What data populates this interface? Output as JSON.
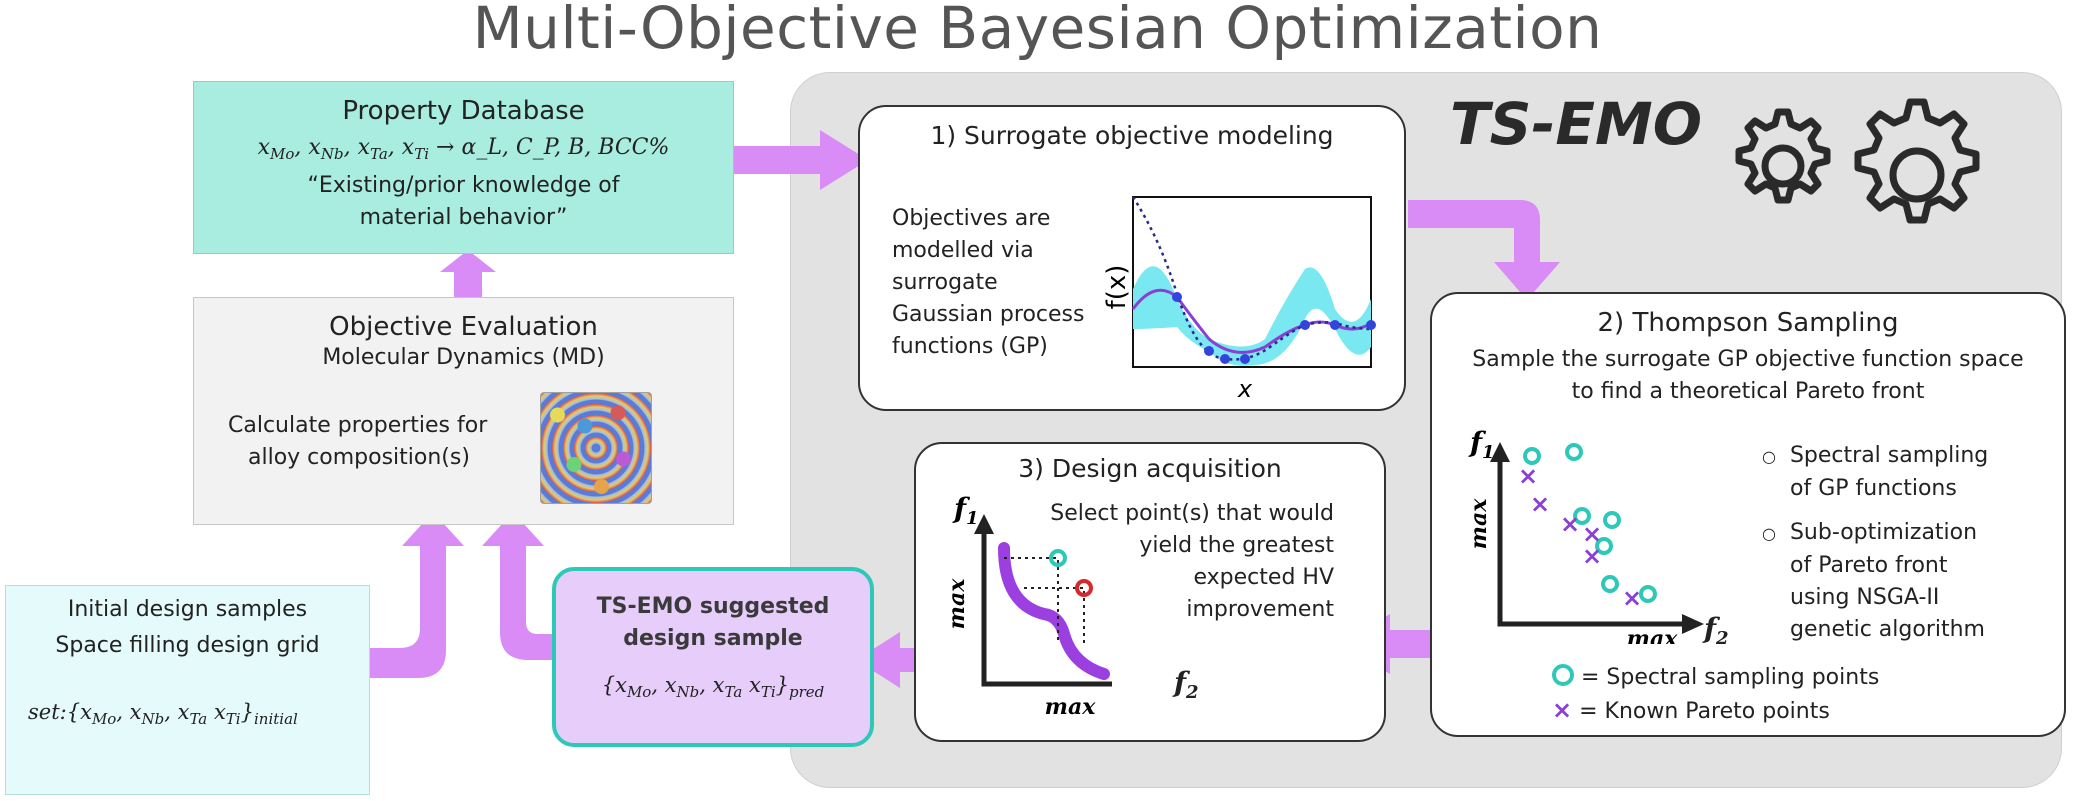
{
  "title": "Multi-Objective Bayesian Optimization",
  "tsemo_label": "TS-EMO",
  "property_database": {
    "title": "Property Database",
    "vars": [
      "Mo",
      "Nb",
      "Ta",
      "Ti"
    ],
    "outputs": "α_L, C_P, B, BCC%",
    "quote_line1": "“Existing/prior knowledge of",
    "quote_line2": "material behavior”"
  },
  "objective_evaluation": {
    "title": "Objective Evaluation",
    "subtitle": "Molecular Dynamics (MD)",
    "text_line1": "Calculate properties for",
    "text_line2": "alloy composition(s)"
  },
  "initial_design": {
    "title": "Initial design samples",
    "subtitle": "Space filling design grid",
    "set_label": "set:",
    "subscript": "initial"
  },
  "suggested": {
    "title_line1": "TS-EMO suggested",
    "title_line2": "design sample",
    "subscript": "pred"
  },
  "surrogate": {
    "title": "1) Surrogate objective modeling",
    "text": [
      "Objectives are",
      "modelled via",
      "surrogate",
      "Gaussian process",
      "functions (GP)"
    ],
    "ylabel": "f(x)",
    "xlabel": "x"
  },
  "thompson": {
    "title": "2) Thompson Sampling",
    "line1": "Sample the surrogate GP objective function space",
    "line2": "to find a theoretical Pareto front",
    "bullets": [
      [
        "Spectral sampling",
        "of GP functions"
      ],
      [
        "Sub-optimization",
        "of Pareto front",
        "using NSGA-II",
        "genetic algorithm"
      ]
    ],
    "y_axis": "f",
    "y_sub": "1",
    "x_axis": "f",
    "x_sub": "2",
    "max_label": "max",
    "legend_circle": "= Spectral sampling points",
    "legend_x": "= Known Pareto points"
  },
  "design": {
    "title": "3) Design acquisition",
    "text": [
      "Select point(s) that would",
      "yield the greatest",
      "expected HV",
      "improvement"
    ],
    "y_axis": "f",
    "y_sub": "1",
    "x_axis": "f",
    "x_sub": "2",
    "max_label": "max"
  },
  "colors": {
    "arrow": "#d98cf5",
    "teal": "#a9ece0",
    "purple": "#9b3fe0",
    "cyan": "#7ae8f0",
    "gp_mean": "#8a3fd6"
  }
}
